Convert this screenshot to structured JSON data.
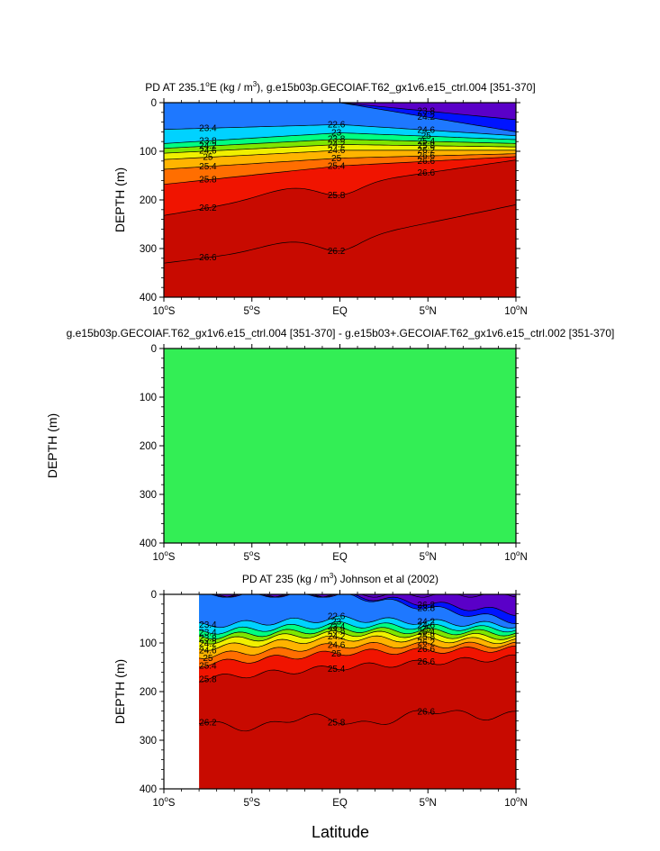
{
  "chart_data": [
    {
      "type": "contour",
      "title": "PD AT 235.1°E (kg / m³), g.e15b03p.GECOIAF.T62_gx1v6.e15_ctrl.004 [351-370]",
      "ylabel": "DEPTH (m)",
      "xlabel": "",
      "x_ticks": [
        "10°S",
        "5°S",
        "EQ",
        "5°N",
        "10°N"
      ],
      "y_ticks": [
        "0",
        "100",
        "200",
        "300",
        "400"
      ],
      "xlim": [
        -10,
        10
      ],
      "ylim": [
        400,
        0
      ],
      "contour_labels": [
        "23.4",
        "23.8",
        "24.2",
        "24.6",
        "25",
        "25.4",
        "25.8",
        "26.2",
        "26.6",
        "22.6",
        "23",
        "23.8",
        "24.2",
        "24.6",
        "25",
        "25.4",
        "25.8",
        "26.2",
        "23.8",
        "24.2",
        "24.6",
        "25",
        "25.4",
        "25.8",
        "26.2",
        "26.6",
        "26.6",
        "26.6"
      ],
      "profiles": [
        {
          "name": "left",
          "isopycnal_depths": [
            [
              23.0,
              0
            ],
            [
              23.4,
              55
            ],
            [
              23.8,
              84
            ],
            [
              24.2,
              94
            ],
            [
              24.6,
              104
            ],
            [
              25.0,
              117
            ],
            [
              25.4,
              137
            ],
            [
              25.8,
              168
            ],
            [
              26.2,
              232
            ],
            [
              26.6,
              330
            ]
          ]
        },
        {
          "name": "center",
          "isopycnal_depths": [
            [
              23.0,
              0
            ],
            [
              23.4,
              45
            ],
            [
              23.8,
              62
            ],
            [
              24.2,
              75
            ],
            [
              24.6,
              86
            ],
            [
              25.0,
              98
            ],
            [
              25.4,
              114
            ],
            [
              25.8,
              130
            ],
            [
              26.2,
              170
            ],
            [
              26.6,
              285
            ]
          ]
        },
        {
          "name": "right",
          "isopycnal_depths": [
            [
              22.2,
              0
            ],
            [
              22.6,
              35
            ],
            [
              23.0,
              60
            ],
            [
              23.4,
              68
            ],
            [
              23.8,
              76
            ],
            [
              24.2,
              84
            ],
            [
              24.6,
              91
            ],
            [
              25.0,
              98
            ],
            [
              25.4,
              105
            ],
            [
              25.8,
              111
            ],
            [
              26.2,
              118
            ],
            [
              26.6,
              210
            ]
          ]
        }
      ]
    },
    {
      "type": "contour",
      "title": "g.e15b03p.GECOIAF.T62_gx1v6.e15_ctrl.004 [351-370] - g.e15b03+.GECOIAF.T62_gx1v6.e15_ctrl.002 [351-370]",
      "ylabel": "DEPTH (m)",
      "xlabel": "",
      "x_ticks": [
        "10°S",
        "5°S",
        "EQ",
        "5°N",
        "10°N"
      ],
      "y_ticks": [
        "0",
        "100",
        "200",
        "300",
        "400"
      ],
      "xlim": [
        -10,
        10
      ],
      "ylim": [
        400,
        0
      ],
      "uniform_value": 0,
      "fill_color": "#33ee55"
    },
    {
      "type": "contour",
      "title": "PD AT 235 (kg / m³) Johnson et al (2002)",
      "ylabel": "DEPTH (m)",
      "xlabel": "Latitude",
      "x_ticks": [
        "10°S",
        "5°S",
        "EQ",
        "5°N",
        "10°N"
      ],
      "y_ticks": [
        "0",
        "100",
        "200",
        "300",
        "400"
      ],
      "xlim": [
        -10,
        10
      ],
      "ylim": [
        400,
        0
      ],
      "data_start_lat": -8,
      "contour_labels": [
        "23.4",
        "23.4",
        "23.8",
        "24.2",
        "24.6",
        "25",
        "25.4",
        "25.8",
        "26.2",
        "22.6",
        "23",
        "23.4",
        "23.8",
        "24.2",
        "24.6",
        "25",
        "25.4",
        "25.8",
        "26.2",
        "23.8",
        "24.2",
        "24.6",
        "25",
        "25.4",
        "25.8",
        "26.2",
        "26.6",
        "26.6",
        "26.6"
      ],
      "profiles": [
        {
          "name": "left",
          "isopycnal_depths": [
            [
              23.0,
              0
            ],
            [
              23.4,
              68
            ],
            [
              23.8,
              82
            ],
            [
              24.2,
              92
            ],
            [
              24.6,
              102
            ],
            [
              25.0,
              116
            ],
            [
              25.4,
              133
            ],
            [
              25.8,
              150
            ],
            [
              26.2,
              180
            ],
            [
              26.6,
              270
            ]
          ]
        },
        {
          "name": "center",
          "isopycnal_depths": [
            [
              23.0,
              0
            ],
            [
              23.4,
              50
            ],
            [
              23.8,
              62
            ],
            [
              24.2,
              72
            ],
            [
              24.6,
              80
            ],
            [
              25.0,
              90
            ],
            [
              25.4,
              105
            ],
            [
              25.8,
              120
            ],
            [
              26.2,
              150
            ],
            [
              26.6,
              260
            ]
          ]
        },
        {
          "name": "right",
          "isopycnal_depths": [
            [
              22.2,
              0
            ],
            [
              22.6,
              38
            ],
            [
              23.0,
              55
            ],
            [
              23.4,
              64
            ],
            [
              23.8,
              72
            ],
            [
              24.2,
              80
            ],
            [
              24.6,
              88
            ],
            [
              25.0,
              96
            ],
            [
              25.4,
              104
            ],
            [
              25.8,
              112
            ],
            [
              26.2,
              130
            ],
            [
              26.6,
              240
            ]
          ]
        }
      ]
    }
  ],
  "colors": {
    "scale": [
      "#5a00c8",
      "#0014ff",
      "#1e78ff",
      "#00d2ff",
      "#00ff82",
      "#7ee600",
      "#f0f000",
      "#ffb400",
      "#ff6e00",
      "#f01400",
      "#c80a00"
    ],
    "difference_fill": "#33ee55"
  },
  "labels": {
    "p1": {
      "title_a": "PD AT 235.1",
      "title_b": "E (kg / m",
      "title_c": "), g.e15b03p.GECOIAF.T62_gx1v6.e15_ctrl.004 [351-370]",
      "deg": "o",
      "sup": "3"
    },
    "p2": {
      "title": "g.e15b03p.GECOIAF.T62_gx1v6.e15_ctrl.004 [351-370] - g.e15b03+.GECOIAF.T62_gx1v6.e15_ctrl.002 [351-370]"
    },
    "p3": {
      "title_a": "PD AT 235 (kg / m",
      "title_b": ") Johnson et al (2002)",
      "sup": "3"
    },
    "ylabel": "DEPTH (m)",
    "xlabel": "Latitude",
    "yticks": [
      "0",
      "100",
      "200",
      "300",
      "400"
    ],
    "xticks": [
      {
        "v": "10",
        "s": "o",
        "h": "S"
      },
      {
        "v": "5",
        "s": "o",
        "h": "S"
      },
      {
        "v": "EQ",
        "s": "",
        "h": ""
      },
      {
        "v": "5",
        "s": "o",
        "h": "N"
      },
      {
        "v": "10",
        "s": "o",
        "h": "N"
      }
    ]
  }
}
